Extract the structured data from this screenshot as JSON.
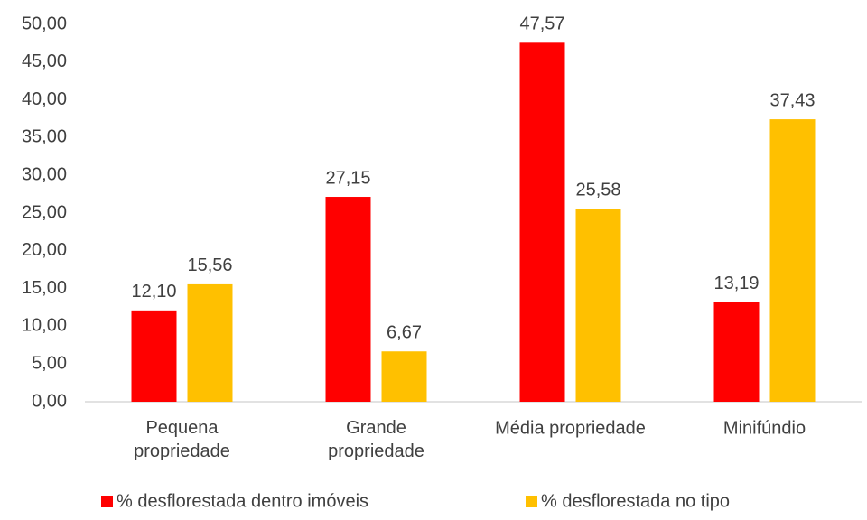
{
  "chart_data": {
    "type": "bar",
    "categories": [
      "Pequena\npropriedade",
      "Grande\npropriedade",
      "Média propriedade",
      "Minifúndio"
    ],
    "series": [
      {
        "name": "% desflorestada dentro imóveis",
        "color": "#ff0000",
        "values": [
          12.1,
          27.15,
          47.57,
          13.19
        ],
        "value_labels": [
          "12,10",
          "27,15",
          "47,57",
          "13,19"
        ]
      },
      {
        "name": "% desflorestada no tipo",
        "color": "#ffc000",
        "values": [
          15.56,
          6.67,
          25.58,
          37.43
        ],
        "value_labels": [
          "15,56",
          "6,67",
          "25,58",
          "37,43"
        ]
      }
    ],
    "ylim": [
      0,
      50
    ],
    "yticks": [
      {
        "value": 0,
        "label": "0,00"
      },
      {
        "value": 5,
        "label": "5,00"
      },
      {
        "value": 10,
        "label": "10,00"
      },
      {
        "value": 15,
        "label": "15,00"
      },
      {
        "value": 20,
        "label": "20,00"
      },
      {
        "value": 25,
        "label": "25,00"
      },
      {
        "value": 30,
        "label": "30,00"
      },
      {
        "value": 35,
        "label": "35,00"
      },
      {
        "value": 40,
        "label": "40,00"
      },
      {
        "value": 45,
        "label": "45,00"
      },
      {
        "value": 50,
        "label": "50,00"
      }
    ],
    "grid": false,
    "legend": "bottom"
  }
}
